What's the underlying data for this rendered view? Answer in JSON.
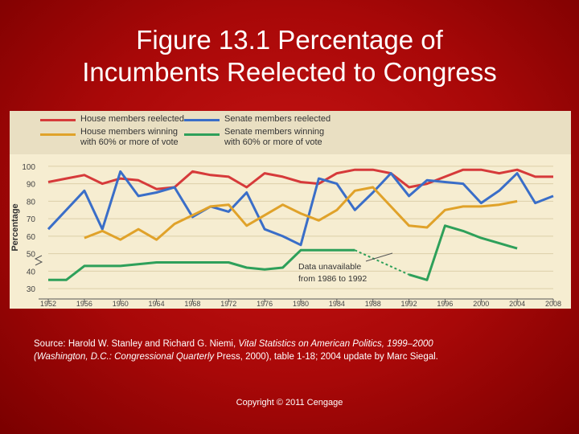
{
  "slide": {
    "title_line1": "Figure 13.1 Percentage of",
    "title_line2": "Incumbents Reelected to Congress"
  },
  "source": {
    "prefix": "Source: Harold W. Stanley and Richard G. Niemi, ",
    "book_part1": "Vital Statistics on American Politics, 1999–2000",
    "book_part2": "(Washington, D.C.: Congressional Quarterly",
    "suffix": " Press, 2000), table 1-18; 2004 update by Marc Siegal."
  },
  "copyright": "Copyright © 2011 Cengage",
  "chart_data": {
    "type": "line",
    "ylabel": "Percentage",
    "ylim": [
      25,
      105
    ],
    "xlim": [
      1952,
      2008
    ],
    "y_ticks": [
      30,
      40,
      50,
      60,
      70,
      80,
      90,
      100
    ],
    "x_ticks": [
      1952,
      1956,
      1960,
      1964,
      1968,
      1972,
      1976,
      1980,
      1984,
      1988,
      1992,
      1996,
      2000,
      2004,
      2008
    ],
    "legend_position": "top",
    "annotation": {
      "line1": "Data unavailable",
      "line2": "from 1986 to 1992"
    },
    "series": [
      {
        "name": "House members reelected",
        "color": "#d63a3a",
        "points": [
          [
            1952,
            91
          ],
          [
            1954,
            93
          ],
          [
            1956,
            95
          ],
          [
            1958,
            90
          ],
          [
            1960,
            93
          ],
          [
            1962,
            92
          ],
          [
            1964,
            87
          ],
          [
            1966,
            88
          ],
          [
            1968,
            97
          ],
          [
            1970,
            95
          ],
          [
            1972,
            94
          ],
          [
            1974,
            88
          ],
          [
            1976,
            96
          ],
          [
            1978,
            94
          ],
          [
            1980,
            91
          ],
          [
            1982,
            90
          ],
          [
            1984,
            96
          ],
          [
            1986,
            98
          ],
          [
            1988,
            98
          ],
          [
            1990,
            96
          ],
          [
            1992,
            88
          ],
          [
            1994,
            90
          ],
          [
            1996,
            94
          ],
          [
            1998,
            98
          ],
          [
            2000,
            98
          ],
          [
            2002,
            96
          ],
          [
            2004,
            98
          ],
          [
            2006,
            94
          ],
          [
            2008,
            94
          ]
        ]
      },
      {
        "name": "Senate members reelected",
        "color": "#3a6ec8",
        "points": [
          [
            1952,
            64
          ],
          [
            1956,
            86
          ],
          [
            1958,
            64
          ],
          [
            1960,
            97
          ],
          [
            1962,
            83
          ],
          [
            1964,
            85
          ],
          [
            1966,
            88
          ],
          [
            1968,
            71
          ],
          [
            1970,
            77
          ],
          [
            1972,
            74
          ],
          [
            1974,
            85
          ],
          [
            1976,
            64
          ],
          [
            1978,
            60
          ],
          [
            1980,
            55
          ],
          [
            1982,
            93
          ],
          [
            1984,
            90
          ],
          [
            1986,
            75
          ],
          [
            1988,
            85
          ],
          [
            1990,
            96
          ],
          [
            1992,
            83
          ],
          [
            1994,
            92
          ],
          [
            1996,
            91
          ],
          [
            1998,
            90
          ],
          [
            2000,
            79
          ],
          [
            2002,
            86
          ],
          [
            2004,
            96
          ],
          [
            2006,
            79
          ],
          [
            2008,
            83
          ]
        ]
      },
      {
        "name": "House members winning with 60% or more of vote",
        "color": "#e0a22a",
        "points": [
          [
            1956,
            59
          ],
          [
            1958,
            63
          ],
          [
            1960,
            58
          ],
          [
            1962,
            64
          ],
          [
            1964,
            58
          ],
          [
            1966,
            67
          ],
          [
            1968,
            72
          ],
          [
            1970,
            77
          ],
          [
            1972,
            78
          ],
          [
            1974,
            66
          ],
          [
            1976,
            72
          ],
          [
            1978,
            78
          ],
          [
            1980,
            73
          ],
          [
            1982,
            69
          ],
          [
            1984,
            75
          ],
          [
            1986,
            86
          ],
          [
            1988,
            88
          ],
          [
            1990,
            77
          ],
          [
            1992,
            66
          ],
          [
            1994,
            65
          ],
          [
            1996,
            75
          ],
          [
            1998,
            77
          ],
          [
            2000,
            77
          ],
          [
            2002,
            78
          ],
          [
            2004,
            80
          ]
        ]
      },
      {
        "name": "Senate members winning with 60% or more of vote",
        "color": "#2ea05a",
        "points": [
          [
            1952,
            35
          ],
          [
            1954,
            35
          ],
          [
            1956,
            43
          ],
          [
            1960,
            43
          ],
          [
            1964,
            45
          ],
          [
            1968,
            45
          ],
          [
            1972,
            45
          ],
          [
            1974,
            42
          ],
          [
            1976,
            41
          ],
          [
            1978,
            42
          ],
          [
            1980,
            52
          ],
          [
            1982,
            52
          ],
          [
            1984,
            52
          ],
          [
            1986,
            52
          ],
          [
            1992,
            38
          ],
          [
            1994,
            35
          ],
          [
            1996,
            66
          ],
          [
            1998,
            63
          ],
          [
            2000,
            59
          ],
          [
            2002,
            56
          ],
          [
            2004,
            53
          ]
        ]
      }
    ]
  }
}
